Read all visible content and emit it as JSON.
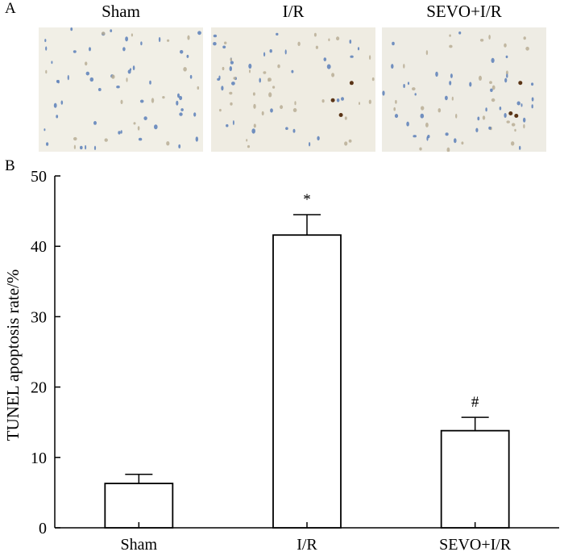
{
  "panel_a": {
    "letter": "A",
    "images": [
      {
        "label": "Sham",
        "tint": "#f1efe6"
      },
      {
        "label": "I/R",
        "tint": "#efece2"
      },
      {
        "label": "SEVO+I/R",
        "tint": "#eeece4"
      }
    ]
  },
  "panel_b": {
    "letter": "B"
  },
  "chart_data": {
    "type": "bar",
    "categories": [
      "Sham",
      "I/R",
      "SEVO+I/R"
    ],
    "values": [
      6.3,
      41.6,
      13.8
    ],
    "errors": [
      1.3,
      2.9,
      1.9
    ],
    "annotations": [
      "",
      "*",
      "#"
    ],
    "ylabel": "TUNEL apoptosis rate/%",
    "xlabel": "",
    "ylim": [
      0,
      50
    ],
    "yticks": [
      0,
      10,
      20,
      30,
      40,
      50
    ],
    "bar_fill": "#ffffff",
    "bar_stroke": "#000000"
  }
}
